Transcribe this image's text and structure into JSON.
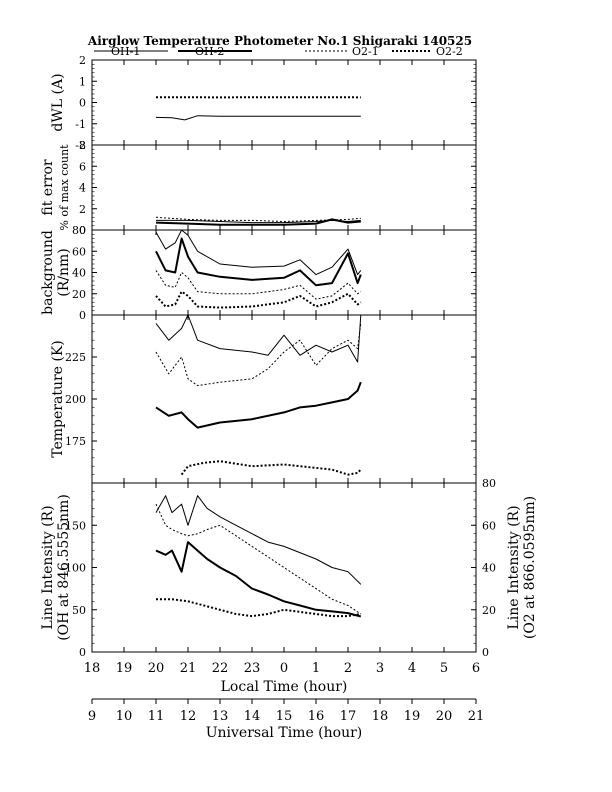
{
  "title": "Airglow Temperature Photometer No.1  Shigaraki  140525",
  "legend": [
    {
      "name": "OH-1",
      "style": "solid-thin"
    },
    {
      "name": "OH-2",
      "style": "solid-thick"
    },
    {
      "name": "O2-1",
      "style": "dotted-thin"
    },
    {
      "name": "O2-2",
      "style": "dotted-thick"
    }
  ],
  "chart_data": {
    "type": "line",
    "x_axis_local": {
      "label": "Local Time (hour)",
      "ticks": [
        "18",
        "19",
        "20",
        "21",
        "22",
        "23",
        "0",
        "1",
        "2",
        "3",
        "4",
        "5",
        "6"
      ],
      "range": [
        18,
        30
      ]
    },
    "x_axis_ut": {
      "label": "Universal Time (hour)",
      "ticks": [
        "9",
        "10",
        "11",
        "12",
        "13",
        "14",
        "15",
        "16",
        "17",
        "18",
        "19",
        "20",
        "21"
      ],
      "range": [
        9,
        21
      ]
    },
    "panels": [
      {
        "id": "dwl",
        "ylabel": "dWL (A)",
        "ylim": [
          -2,
          2
        ],
        "ticks": [
          "2",
          "1",
          "0",
          "-1",
          "-2"
        ],
        "tick_values": [
          2,
          1,
          0,
          -1,
          -2
        ],
        "series": [
          {
            "name": "OH-1",
            "x": [
              20.0,
              20.5,
              20.9,
              21.3,
              22.0,
              24.0,
              26.0,
              26.4
            ],
            "y": [
              -0.7,
              -0.72,
              -0.82,
              -0.62,
              -0.65,
              -0.65,
              -0.65,
              -0.65
            ]
          },
          {
            "name": "O2-2",
            "x": [
              20.0,
              21.0,
              22.0,
              23.0,
              24.0,
              25.0,
              26.0,
              26.4
            ],
            "y": [
              0.25,
              0.25,
              0.24,
              0.25,
              0.25,
              0.25,
              0.25,
              0.24
            ]
          }
        ]
      },
      {
        "id": "fit",
        "ylabel": "fit error",
        "ylabel2": "% of max count",
        "ylim": [
          0,
          8
        ],
        "ticks": [
          "8",
          "6",
          "4",
          "2",
          "0"
        ],
        "tick_values": [
          8,
          6,
          4,
          2,
          0
        ],
        "series": [
          {
            "name": "OH-1",
            "x": [
              20.0,
              21.0,
              22.0,
              23.0,
              24.0,
              25.0,
              25.5,
              26.0,
              26.4
            ],
            "y": [
              0.9,
              0.9,
              0.8,
              0.7,
              0.7,
              0.8,
              0.9,
              0.8,
              0.9
            ]
          },
          {
            "name": "OH-2",
            "x": [
              20.0,
              21.0,
              22.0,
              23.0,
              24.0,
              25.0,
              25.5,
              26.0,
              26.4
            ],
            "y": [
              0.7,
              0.6,
              0.5,
              0.5,
              0.5,
              0.6,
              1.0,
              0.7,
              0.8
            ]
          },
          {
            "name": "O2-1",
            "x": [
              20.0,
              21.0,
              22.0,
              23.0,
              24.0,
              25.0,
              26.0,
              26.4
            ],
            "y": [
              1.2,
              1.0,
              0.9,
              0.9,
              0.8,
              0.9,
              1.0,
              1.1
            ]
          }
        ]
      },
      {
        "id": "bg",
        "ylabel": "background",
        "ylabel2": "(R/nm)",
        "ylim": [
          0,
          80
        ],
        "ticks": [
          "80",
          "60",
          "40",
          "20",
          "0"
        ],
        "tick_values": [
          80,
          60,
          40,
          20,
          0
        ],
        "series": [
          {
            "name": "OH-1",
            "x": [
              20.0,
              20.3,
              20.6,
              20.8,
              21.0,
              21.3,
              22.0,
              23.0,
              24.0,
              24.5,
              25.0,
              25.5,
              26.0,
              26.3,
              26.4
            ],
            "y": [
              78,
              62,
              68,
              80,
              75,
              60,
              48,
              45,
              46,
              52,
              38,
              45,
              62,
              38,
              42
            ]
          },
          {
            "name": "OH-2",
            "x": [
              20.0,
              20.3,
              20.6,
              20.8,
              21.0,
              21.3,
              22.0,
              23.0,
              24.0,
              24.5,
              25.0,
              25.5,
              26.0,
              26.3,
              26.4
            ],
            "y": [
              60,
              42,
              40,
              72,
              55,
              40,
              36,
              33,
              35,
              42,
              28,
              30,
              58,
              30,
              38
            ]
          },
          {
            "name": "O2-1",
            "x": [
              20.0,
              20.3,
              20.6,
              20.8,
              21.0,
              21.3,
              22.0,
              23.0,
              24.0,
              24.5,
              25.0,
              25.5,
              26.0,
              26.3,
              26.4
            ],
            "y": [
              42,
              28,
              26,
              40,
              35,
              22,
              20,
              20,
              24,
              28,
              15,
              18,
              30,
              20,
              22
            ]
          },
          {
            "name": "O2-2",
            "x": [
              20.0,
              20.3,
              20.6,
              20.8,
              21.0,
              21.3,
              22.0,
              23.0,
              24.0,
              24.5,
              25.0,
              25.5,
              26.0,
              26.3,
              26.4
            ],
            "y": [
              18,
              8,
              10,
              22,
              18,
              8,
              7,
              8,
              12,
              18,
              8,
              12,
              20,
              10,
              12
            ]
          }
        ]
      },
      {
        "id": "temp",
        "ylabel": "Temperature (K)",
        "ylim": [
          150,
          250
        ],
        "ticks": [
          "225",
          "200",
          "175"
        ],
        "tick_values": [
          225,
          200,
          175
        ],
        "series": [
          {
            "name": "OH-1",
            "x": [
              20.0,
              20.4,
              20.8,
              21.0,
              21.3,
              22.0,
              23.0,
              23.5,
              24.0,
              24.5,
              25.0,
              25.5,
              26.0,
              26.3,
              26.4
            ],
            "y": [
              245,
              235,
              242,
              252,
              235,
              230,
              228,
              226,
              238,
              226,
              232,
              228,
              232,
              222,
              250
            ]
          },
          {
            "name": "O2-1",
            "x": [
              20.0,
              20.4,
              20.8,
              21.0,
              21.3,
              22.0,
              23.0,
              23.5,
              24.0,
              24.5,
              25.0,
              25.5,
              26.0,
              26.3,
              26.4
            ],
            "y": [
              228,
              215,
              225,
              212,
              208,
              210,
              212,
              218,
              228,
              235,
              220,
              230,
              235,
              230,
              245
            ]
          },
          {
            "name": "OH-2",
            "x": [
              20.0,
              20.4,
              20.8,
              21.0,
              21.3,
              22.0,
              23.0,
              24.0,
              24.5,
              25.0,
              25.5,
              26.0,
              26.3,
              26.4
            ],
            "y": [
              195,
              190,
              192,
              188,
              183,
              186,
              188,
              192,
              195,
              196,
              198,
              200,
              205,
              210
            ]
          },
          {
            "name": "O2-2",
            "x": [
              20.8,
              21.0,
              21.5,
              22.0,
              23.0,
              24.0,
              25.0,
              25.5,
              26.0,
              26.3,
              26.4
            ],
            "y": [
              155,
              160,
              162,
              163,
              160,
              161,
              159,
              158,
              155,
              156,
              158
            ]
          }
        ]
      },
      {
        "id": "line",
        "ylabel": "Line Intensity (R)",
        "ylabel2": "(OH at 846.5555nm)",
        "ylim": [
          0,
          200
        ],
        "ticks": [
          "150",
          "100",
          "50",
          "0"
        ],
        "tick_values": [
          150,
          100,
          50,
          0
        ],
        "ylabel_right": "Line Intensity (R)",
        "ylabel_right2": "(O2 at 866.0595nm)",
        "ylim_right": [
          0,
          80
        ],
        "ticks_right": [
          "80",
          "60",
          "40",
          "20",
          "0"
        ],
        "tick_values_right": [
          80,
          60,
          40,
          20,
          0
        ],
        "series": [
          {
            "name": "OH-1",
            "x": [
              20.0,
              20.3,
              20.5,
              20.8,
              21.0,
              21.3,
              21.6,
              22.0,
              22.5,
              23.0,
              23.5,
              24.0,
              25.0,
              25.5,
              26.0,
              26.4
            ],
            "y": [
              165,
              185,
              165,
              175,
              150,
              185,
              170,
              160,
              150,
              140,
              130,
              125,
              110,
              100,
              95,
              80
            ]
          },
          {
            "name": "OH-2",
            "x": [
              20.0,
              20.3,
              20.5,
              20.8,
              21.0,
              21.3,
              21.6,
              22.0,
              22.5,
              23.0,
              23.5,
              24.0,
              24.5,
              25.0,
              25.5,
              26.0,
              26.4
            ],
            "y": [
              120,
              115,
              120,
              95,
              130,
              120,
              110,
              100,
              90,
              75,
              68,
              60,
              55,
              50,
              48,
              46,
              42
            ]
          },
          {
            "name": "O2-1",
            "x": [
              20.0,
              20.3,
              20.5,
              20.8,
              21.0,
              21.3,
              21.6,
              22.0,
              22.5,
              23.0,
              23.5,
              24.0,
              24.5,
              25.0,
              25.5,
              26.0,
              26.4
            ],
            "y": [
              70,
              60,
              58,
              56,
              55,
              56,
              58,
              60,
              55,
              50,
              45,
              40,
              35,
              30,
              25,
              22,
              18
            ],
            "axis": "right"
          },
          {
            "name": "O2-2",
            "x": [
              20.0,
              20.5,
              21.0,
              21.5,
              22.0,
              22.5,
              23.0,
              23.5,
              24.0,
              24.5,
              25.0,
              25.5,
              26.0,
              26.4
            ],
            "y": [
              25,
              25,
              24,
              22,
              20,
              18,
              17,
              18,
              20,
              19,
              18,
              17,
              17,
              18
            ],
            "axis": "right"
          }
        ]
      }
    ]
  }
}
